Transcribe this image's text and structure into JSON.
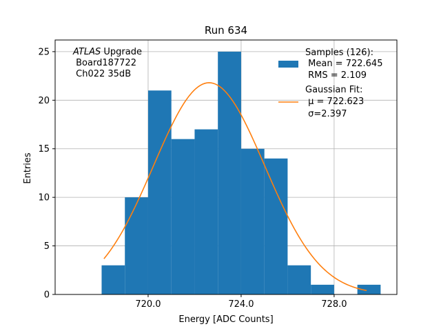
{
  "chart_data": {
    "type": "bar",
    "title": "Run 634",
    "xlabel": "Energy [ADC Counts]",
    "ylabel": "Entries",
    "xlim": [
      716.0,
      730.7
    ],
    "ylim": [
      0,
      26.2
    ],
    "x_ticks": [
      720.0,
      724.0,
      728.0
    ],
    "x_tick_labels": [
      "720.0",
      "724.0",
      "728.0"
    ],
    "y_ticks": [
      0,
      5,
      10,
      15,
      20,
      25
    ],
    "y_tick_labels": [
      "0",
      "5",
      "10",
      "15",
      "20",
      "25"
    ],
    "grid": true,
    "colors": {
      "hist": "#1f77b4",
      "fit": "#ff7f0e",
      "grid": "#b0b0b0"
    },
    "histogram": {
      "name": "Samples (126):",
      "bin_edges": [
        718.0,
        719.0,
        720.0,
        721.0,
        722.0,
        723.0,
        724.0,
        725.0,
        726.0,
        727.0,
        728.0,
        729.0,
        730.0
      ],
      "counts": [
        3,
        10,
        21,
        16,
        17,
        25,
        15,
        14,
        3,
        1,
        0,
        1
      ]
    },
    "fit": {
      "name": "Gaussian Fit:",
      "mu": 722.623,
      "sigma": 2.397,
      "amplitude": 21.8,
      "x_range": [
        718.1,
        729.4
      ]
    },
    "legend": {
      "position": "top-right",
      "hist_lines": [
        "Samples (126):",
        " Mean = 722.645",
        " RMS = 2.109"
      ],
      "fit_lines": [
        "Gaussian Fit:",
        " μ = 722.623",
        " σ=2.397"
      ]
    },
    "annotation": {
      "italic": "ATLAS",
      "rest": " Upgrade",
      "lines": [
        " Board187722",
        " Ch022 35dB"
      ]
    }
  }
}
